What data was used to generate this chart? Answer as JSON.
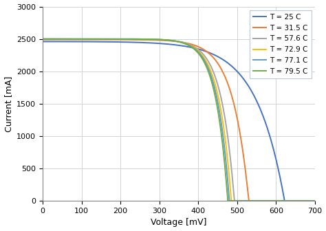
{
  "title": "",
  "xlabel": "Voltage [mV]",
  "ylabel": "Current [mA]",
  "xlim": [
    0,
    700
  ],
  "ylim": [
    0,
    3000
  ],
  "xticks": [
    0,
    100,
    200,
    300,
    400,
    500,
    600,
    700
  ],
  "yticks": [
    0,
    500,
    1000,
    1500,
    2000,
    2500,
    3000
  ],
  "series": [
    {
      "label": "T = 25 C",
      "color": "#4472C4",
      "Isc": 2460,
      "Voc": 622,
      "n": 2.8
    },
    {
      "label": "T = 31.5 C",
      "color": "#ED7D31",
      "Isc": 2490,
      "Voc": 530,
      "n": 1.6
    },
    {
      "label": "T = 57.6 C",
      "color": "#A5A5A5",
      "Isc": 2497,
      "Voc": 493,
      "n": 1.3
    },
    {
      "label": "T = 72.9 C",
      "color": "#FFC000",
      "Isc": 2498,
      "Voc": 485,
      "n": 1.25
    },
    {
      "label": "T = 77.1 C",
      "color": "#5B9BD5",
      "Isc": 2499,
      "Voc": 480,
      "n": 1.22
    },
    {
      "label": "T = 79.5 C",
      "color": "#70AD47",
      "Isc": 2500,
      "Voc": 476,
      "n": 1.2
    }
  ],
  "background_color": "#FFFFFF",
  "grid_color": "#D3D3D3",
  "legend_edge_color": "#B8C8D8"
}
